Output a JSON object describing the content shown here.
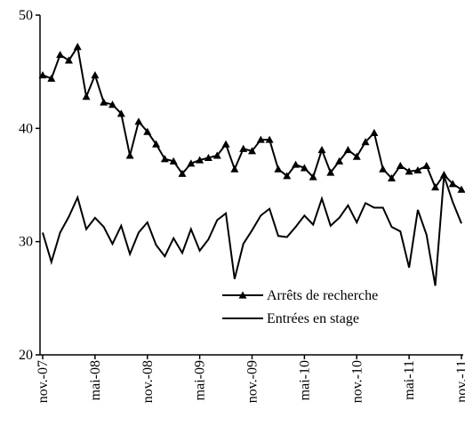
{
  "chart_data": {
    "type": "line",
    "categories": [
      "nov.-07",
      null,
      null,
      null,
      null,
      null,
      "mai-08",
      null,
      null,
      null,
      null,
      null,
      "nov.-08",
      null,
      null,
      null,
      null,
      null,
      "mai-09",
      null,
      null,
      null,
      null,
      null,
      "nov.-09",
      null,
      null,
      null,
      null,
      null,
      "mai-10",
      null,
      null,
      null,
      null,
      null,
      "nov.-10",
      null,
      null,
      null,
      null,
      null,
      "mai-11",
      null,
      null,
      null,
      null,
      null,
      "nov.-11"
    ],
    "series": [
      {
        "name": "Arrêts de recherche",
        "color": "#000000",
        "marker": "triangle",
        "values": [
          44.7,
          44.4,
          46.5,
          46.0,
          47.2,
          42.8,
          44.7,
          42.3,
          42.1,
          41.3,
          37.6,
          40.6,
          39.7,
          38.6,
          37.3,
          37.1,
          36.0,
          36.9,
          37.2,
          37.4,
          37.6,
          38.6,
          36.4,
          38.2,
          38.0,
          39.0,
          39.0,
          36.4,
          35.8,
          36.8,
          36.5,
          35.7,
          38.1,
          36.1,
          37.1,
          38.1,
          37.5,
          38.8,
          39.6,
          36.4,
          35.6,
          36.7,
          36.2,
          36.3,
          36.7,
          34.8,
          35.9,
          35.1,
          34.6
        ]
      },
      {
        "name": "Entrées en stage",
        "color": "#000000",
        "values": [
          30.8,
          28.2,
          30.8,
          32.2,
          33.9,
          31.1,
          32.1,
          31.3,
          29.8,
          31.4,
          28.9,
          30.8,
          31.7,
          29.7,
          28.7,
          30.3,
          29.0,
          31.1,
          29.2,
          30.2,
          31.9,
          32.5,
          26.7,
          29.8,
          31.0,
          32.3,
          32.9,
          30.5,
          30.4,
          31.3,
          32.3,
          31.5,
          33.8,
          31.4,
          32.1,
          33.2,
          31.7,
          33.4,
          33.0,
          33.0,
          31.3,
          30.9,
          27.7,
          32.8,
          30.6,
          26.1,
          35.8,
          33.5,
          31.6
        ]
      }
    ],
    "ylim": [
      20,
      50
    ],
    "yticks": [
      20,
      30,
      40,
      50
    ],
    "grid": false,
    "legend": "lower right"
  }
}
